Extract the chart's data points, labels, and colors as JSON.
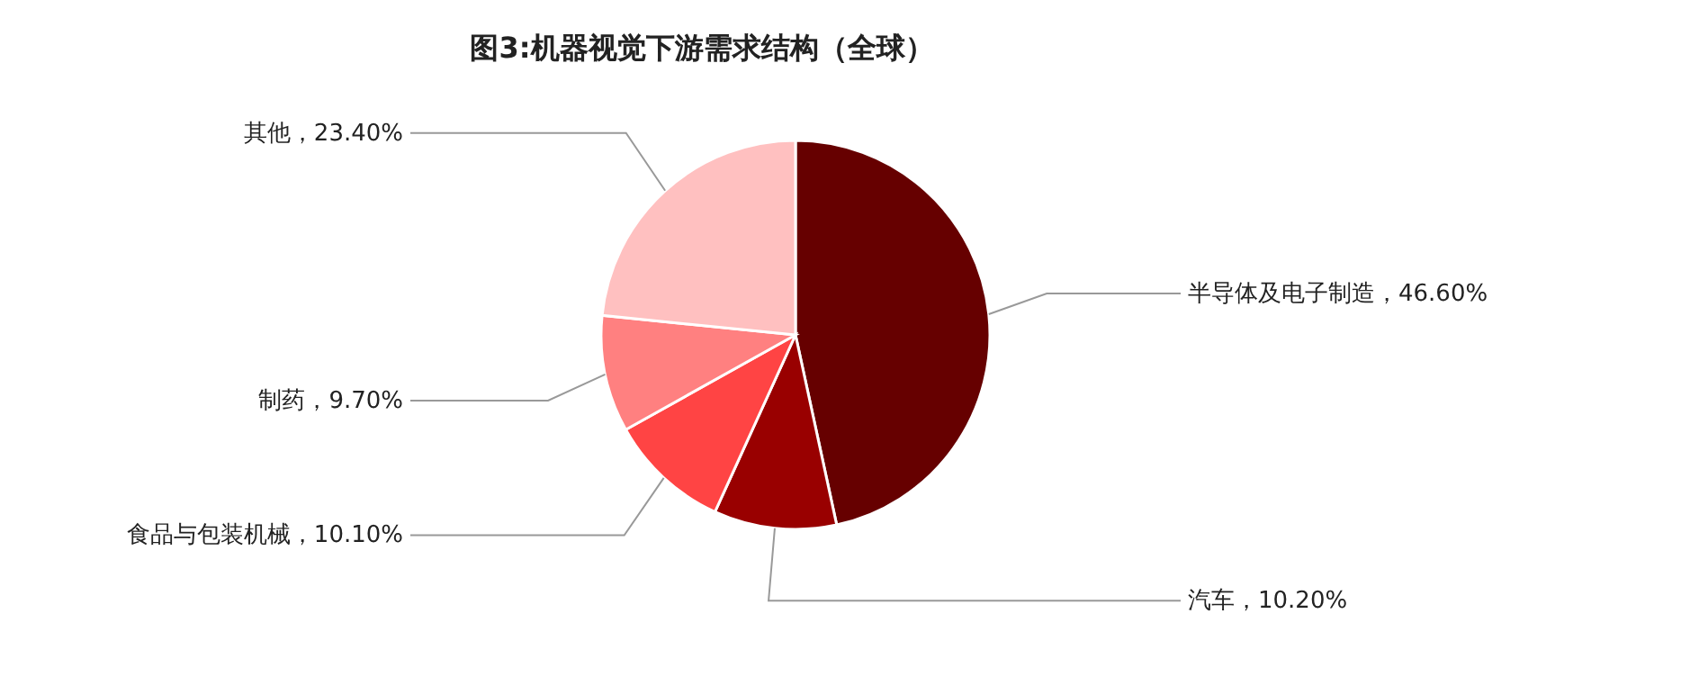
{
  "chart_data": {
    "type": "pie",
    "title": "图3:机器视觉下游需求结构（全球）",
    "categories": [
      "半导体及电子制造",
      "汽车",
      "食品与包装机械",
      "制药",
      "其他"
    ],
    "values": [
      46.6,
      10.2,
      10.1,
      9.7,
      23.4
    ],
    "value_labels": [
      "46.60%",
      "10.20%",
      "10.10%",
      "9.70%",
      "23.40%"
    ],
    "colors": [
      "#660000",
      "#990000",
      "#ff4444",
      "#ff8080",
      "#ffc0c0"
    ]
  }
}
